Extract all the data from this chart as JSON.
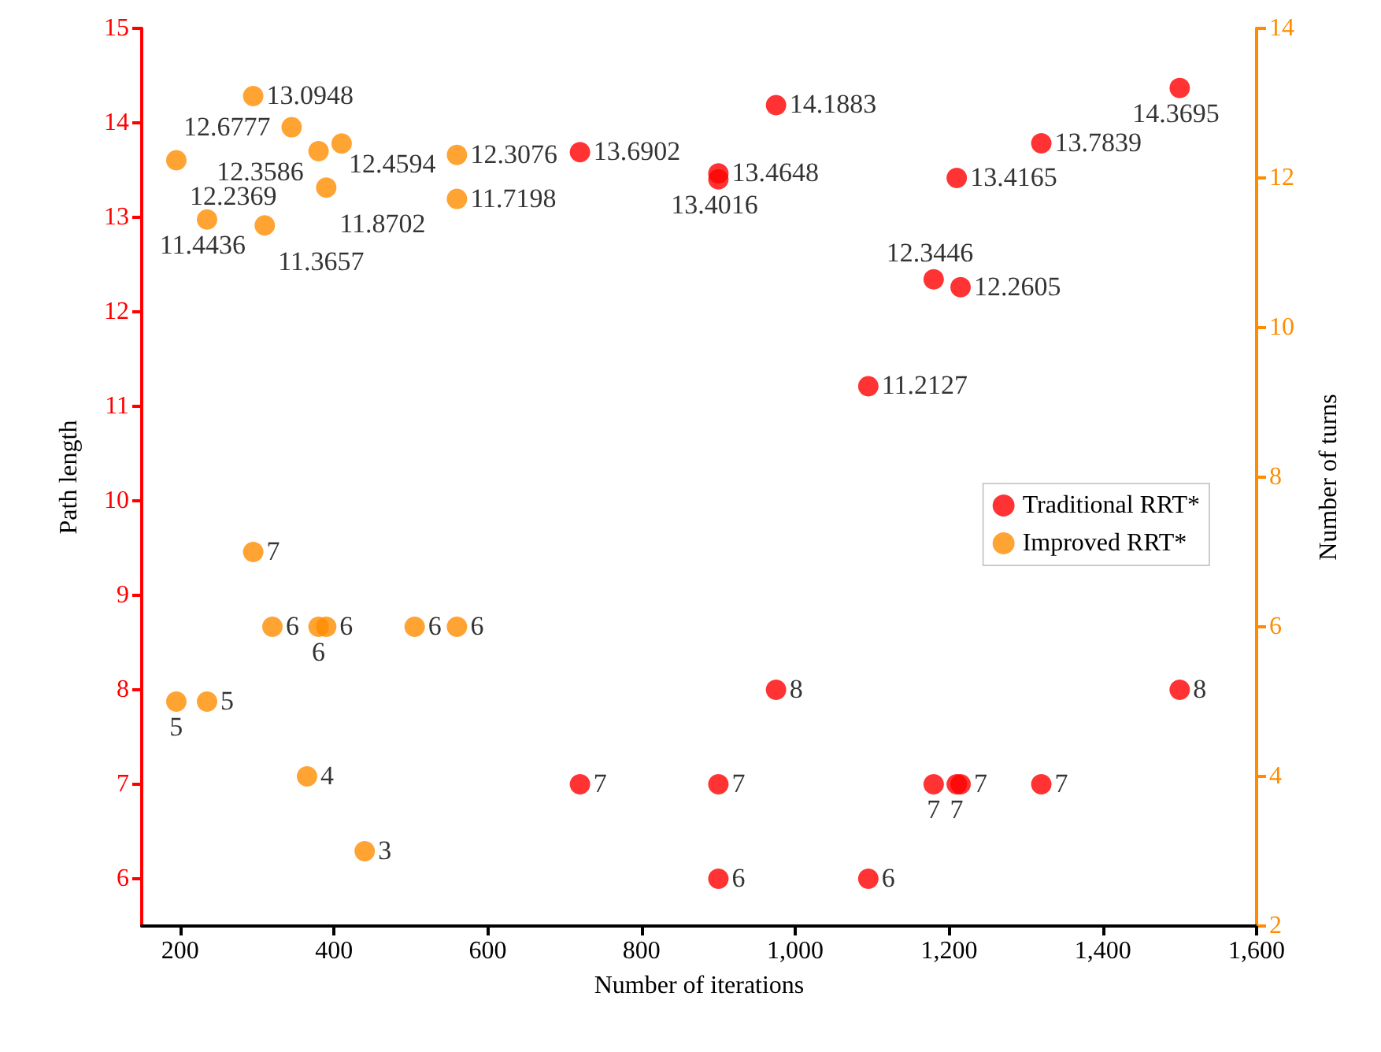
{
  "chart_data": {
    "type": "scatter",
    "xlabel": "Number of iterations",
    "ylabel": "Path length",
    "y2label": "Number of turns",
    "xlim": [
      150,
      1600
    ],
    "xticks": [
      {
        "value": 200,
        "label": "200"
      },
      {
        "value": 400,
        "label": "400"
      },
      {
        "value": 600,
        "label": "600"
      },
      {
        "value": 800,
        "label": "800"
      },
      {
        "value": 1000,
        "label": "1,000"
      },
      {
        "value": 1200,
        "label": "1,200"
      },
      {
        "value": 1400,
        "label": "1,400"
      },
      {
        "value": 1600,
        "label": "1,600"
      }
    ],
    "ylim": [
      5.5,
      15
    ],
    "yticks": [
      6,
      7,
      8,
      9,
      10,
      11,
      12,
      13,
      14,
      15
    ],
    "y2lim": [
      2,
      14
    ],
    "y2ticks": [
      2,
      4,
      6,
      8,
      10,
      12,
      14
    ],
    "series": [
      {
        "name": "Traditional RRT*",
        "color": "#ff0000",
        "x": [
          720,
          975,
          900,
          900,
          1210,
          1320,
          1500,
          1180,
          1215,
          1095
        ],
        "values": [
          13.6902,
          14.1883,
          13.4648,
          13.4016,
          13.4165,
          13.7839,
          14.3695,
          12.3446,
          12.2605,
          11.2127
        ]
      },
      {
        "color": "#ff0000",
        "x": [
          720,
          975,
          900,
          900,
          1210,
          1320,
          1500,
          1180,
          1215,
          1095
        ],
        "values": [
          7,
          8,
          7,
          6,
          7,
          7,
          8,
          7,
          7,
          6
        ]
      },
      {
        "name": "Improved RRT*",
        "color": "#ff8c00",
        "axis": "y2",
        "x": [
          295,
          345,
          410,
          380,
          195,
          390,
          560,
          560,
          235,
          310
        ],
        "values": [
          13.0948,
          12.6777,
          12.4594,
          12.3586,
          12.2369,
          11.8702,
          12.3076,
          11.7198,
          11.4436,
          11.3657
        ]
      },
      {
        "color": "#ff8c00",
        "axis": "y2",
        "x": [
          295,
          320,
          380,
          390,
          505,
          560,
          195,
          235,
          365,
          440
        ],
        "values": [
          7,
          6,
          6,
          6,
          6,
          6,
          5,
          5,
          4,
          3
        ]
      }
    ],
    "data_labels": true,
    "marker": "circle",
    "legend": "right",
    "grid": false
  }
}
